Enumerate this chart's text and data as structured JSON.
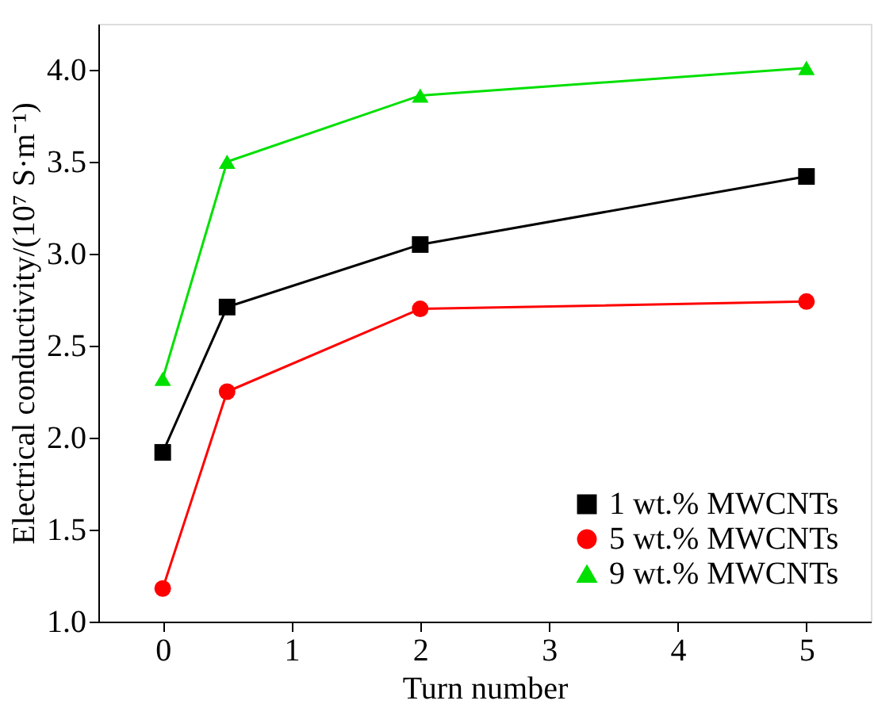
{
  "chart_data": {
    "type": "line",
    "xlabel": "Turn number",
    "ylabel": "Electrical conductivity/(10⁷ S·m⁻¹)",
    "x": [
      0,
      0.5,
      2,
      5
    ],
    "series": [
      {
        "name": "1 wt.% MWCNTs",
        "color": "#000000",
        "marker": "square",
        "values": [
          1.92,
          2.71,
          3.05,
          3.42
        ]
      },
      {
        "name": "5 wt.% MWCNTs",
        "color": "#ff0000",
        "marker": "circle",
        "values": [
          1.18,
          2.25,
          2.7,
          2.74
        ]
      },
      {
        "name": "9 wt.% MWCNTs",
        "color": "#00e000",
        "marker": "triangle",
        "values": [
          2.32,
          3.5,
          3.86,
          4.01
        ]
      }
    ],
    "xlim": [
      -0.5,
      5.5
    ],
    "xticks": [
      0,
      1,
      2,
      3,
      4,
      5
    ],
    "ylim": [
      1.0,
      4.25
    ],
    "yticks": [
      {
        "value": 1.0,
        "label": "1.0"
      },
      {
        "value": 1.5,
        "label": "1.5"
      },
      {
        "value": 2.0,
        "label": "2.0"
      },
      {
        "value": 2.5,
        "label": "2.5"
      },
      {
        "value": 3.0,
        "label": "3.0"
      },
      {
        "value": 3.5,
        "label": "3.5"
      },
      {
        "value": 4.0,
        "label": "4.0"
      }
    ],
    "grid": false,
    "legend": "bottom right",
    "line_style": "solid"
  }
}
